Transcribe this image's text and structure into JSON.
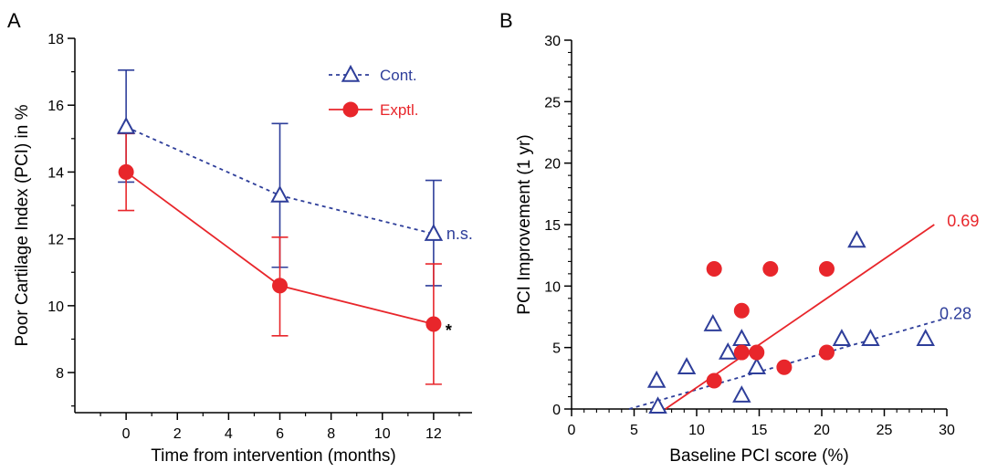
{
  "colors": {
    "control": "#2e3e9a",
    "experimental": "#e8262b",
    "axis": "#000000"
  },
  "chart_data": [
    {
      "panel": "A",
      "type": "line",
      "xlabel": "Time from intervention (months)",
      "ylabel": "Poor Cartilage Index (PCI) in %",
      "xlim": [
        -2,
        13.5
      ],
      "ylim": [
        6.8,
        18
      ],
      "xticks": [
        0,
        2,
        4,
        6,
        8,
        10,
        12
      ],
      "xtick_labels": [
        "0",
        "2",
        "4",
        "6",
        "8",
        "10",
        "12"
      ],
      "yticks": [
        8,
        10,
        12,
        14,
        16,
        18
      ],
      "ytick_labels": [
        "8",
        "10",
        "12",
        "14",
        "16",
        "18"
      ],
      "legend": {
        "position": "top-right",
        "entries": [
          "Cont.",
          "Exptl."
        ]
      },
      "series": [
        {
          "name": "Cont.",
          "marker": "triangle",
          "line": "dashed",
          "x": [
            0,
            6,
            12
          ],
          "y": [
            15.35,
            13.3,
            12.15
          ],
          "err_low": [
            13.7,
            11.15,
            10.6
          ],
          "err_high": [
            17.05,
            15.45,
            13.75
          ],
          "end_annotation": "n.s."
        },
        {
          "name": "Exptl.",
          "marker": "circle",
          "line": "solid",
          "x": [
            0,
            6,
            12
          ],
          "y": [
            14.0,
            10.6,
            9.45
          ],
          "err_low": [
            12.85,
            9.1,
            7.65
          ],
          "err_high": [
            15.15,
            12.05,
            11.25
          ],
          "end_annotation": "*"
        }
      ]
    },
    {
      "panel": "B",
      "type": "scatter",
      "xlabel": "Baseline PCI score (%)",
      "ylabel": "PCI Improvement (1 yr)",
      "xlim": [
        0,
        30
      ],
      "ylim": [
        0,
        30
      ],
      "xticks": [
        0,
        5,
        10,
        15,
        20,
        25,
        30
      ],
      "xtick_labels": [
        "0",
        "5",
        "10",
        "15",
        "20",
        "25",
        "30"
      ],
      "yticks": [
        0,
        5,
        10,
        15,
        20,
        25,
        30
      ],
      "ytick_labels": [
        "0",
        "5",
        "10",
        "15",
        "20",
        "25",
        "30"
      ],
      "series": [
        {
          "name": "Cont.",
          "marker": "triangle",
          "x": [
            6.8,
            6.9,
            9.2,
            11.3,
            12.5,
            13.6,
            13.6,
            14.8,
            21.6,
            22.8,
            23.9,
            28.3
          ],
          "y": [
            2.3,
            0.2,
            3.4,
            6.9,
            4.6,
            5.7,
            1.1,
            3.4,
            5.7,
            13.7,
            5.7,
            5.7
          ],
          "fit": {
            "x": [
              4.6,
              30
            ],
            "y": [
              0,
              7.4
            ],
            "line": "dashed",
            "label": "0.28"
          }
        },
        {
          "name": "Exptl.",
          "marker": "circle",
          "x": [
            11.4,
            11.4,
            13.6,
            13.6,
            14.8,
            15.9,
            17.0,
            20.4,
            20.4
          ],
          "y": [
            2.3,
            11.4,
            8.0,
            4.6,
            4.6,
            11.4,
            3.4,
            4.6,
            11.4
          ],
          "fit": {
            "x": [
              7.5,
              29
            ],
            "y": [
              0,
              15.0
            ],
            "line": "solid",
            "label": "0.69"
          }
        }
      ]
    }
  ]
}
